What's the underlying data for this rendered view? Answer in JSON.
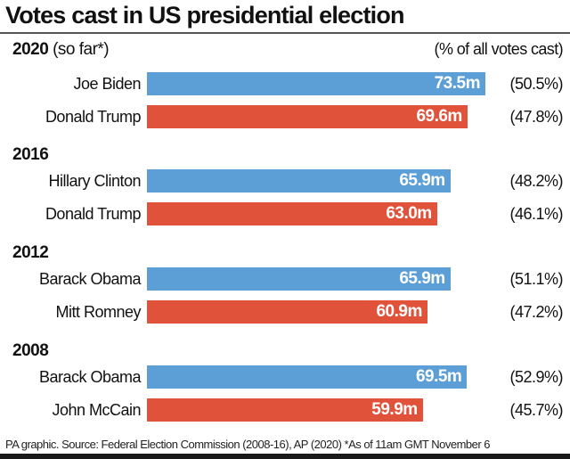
{
  "chart_data": {
    "type": "bar",
    "orientation": "horizontal",
    "title": "Votes cast in US presidential election",
    "pct_header": "(% of all votes cast)",
    "colors": {
      "democrat": "#5b9fd6",
      "republican": "#e0533a"
    },
    "groups": [
      {
        "year": "2020",
        "note": "(so far*)",
        "candidates": [
          {
            "name": "Joe Biden",
            "party": "democrat",
            "value": 73.5,
            "label": "73.5m",
            "pct": "(50.5%)"
          },
          {
            "name": "Donald Trump",
            "party": "republican",
            "value": 69.6,
            "label": "69.6m",
            "pct": "(47.8%)"
          }
        ]
      },
      {
        "year": "2016",
        "note": "",
        "candidates": [
          {
            "name": "Hillary Clinton",
            "party": "democrat",
            "value": 65.9,
            "label": "65.9m",
            "pct": "(48.2%)"
          },
          {
            "name": "Donald Trump",
            "party": "republican",
            "value": 63.0,
            "label": "63.0m",
            "pct": "(46.1%)"
          }
        ]
      },
      {
        "year": "2012",
        "note": "",
        "candidates": [
          {
            "name": "Barack Obama",
            "party": "democrat",
            "value": 65.9,
            "label": "65.9m",
            "pct": "(51.1%)"
          },
          {
            "name": "Mitt Romney",
            "party": "republican",
            "value": 60.9,
            "label": "60.9m",
            "pct": "(47.2%)"
          }
        ]
      },
      {
        "year": "2008",
        "note": "",
        "candidates": [
          {
            "name": "Barack Obama",
            "party": "democrat",
            "value": 69.5,
            "label": "69.5m",
            "pct": "(52.9%)"
          },
          {
            "name": "John McCain",
            "party": "republican",
            "value": 59.9,
            "label": "59.9m",
            "pct": "(45.7%)"
          }
        ]
      }
    ],
    "footer": "PA graphic. Source: Federal Election Commission (2008-16), AP (2020) *As of 11am GMT November 6"
  }
}
